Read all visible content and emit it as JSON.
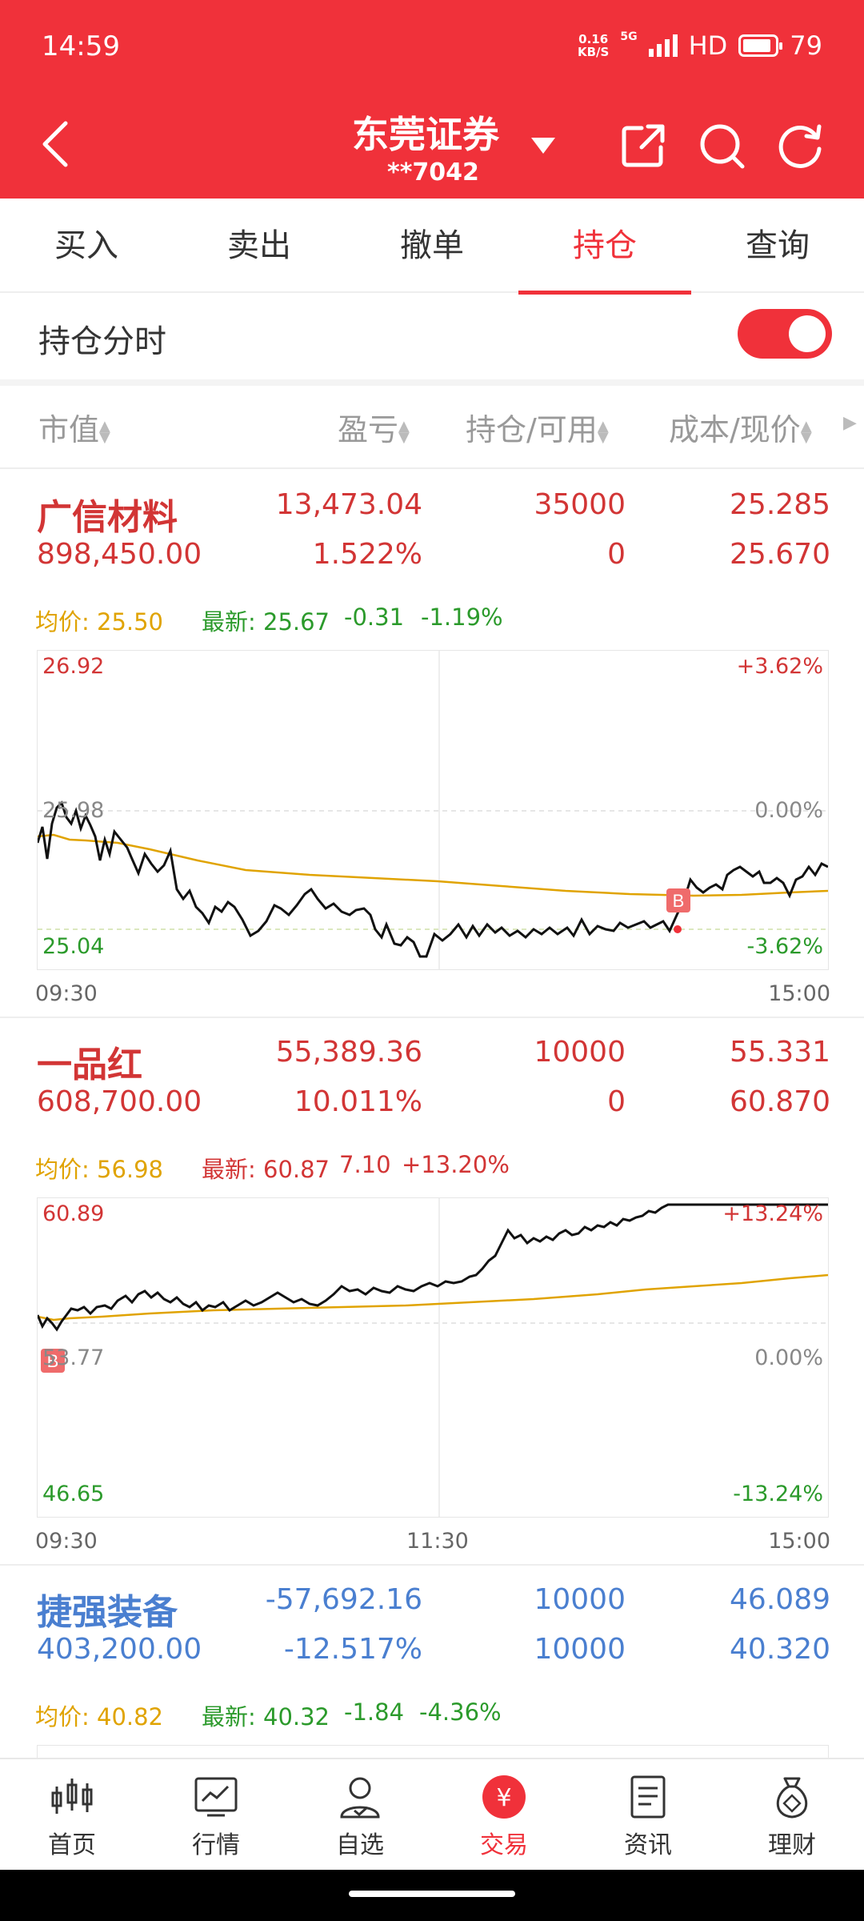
{
  "status_bar": {
    "time": "14:59",
    "net_speed_top": "0.16",
    "net_speed_bottom": "KB/S",
    "signal": "5G",
    "hd": "HD",
    "battery": "79"
  },
  "header": {
    "title": "东莞证券",
    "account": "**7042"
  },
  "tabs": [
    {
      "label": "买入"
    },
    {
      "label": "卖出"
    },
    {
      "label": "撤单"
    },
    {
      "label": "持仓",
      "active": true
    },
    {
      "label": "查询"
    }
  ],
  "toggle": {
    "label": "持仓分时",
    "on": true
  },
  "columns": {
    "market_value": "市值",
    "profit": "盈亏",
    "position": "持仓/可用",
    "cost": "成本/现价"
  },
  "holdings": [
    {
      "name": "广信材料",
      "profit": "13,473.04",
      "position": "35000",
      "cost": "25.285",
      "market_value": "898,450.00",
      "profit_pct": "1.522%",
      "available": "0",
      "price": "25.670",
      "avg_label": "均价: 25.50",
      "latest_label": "最新: 25.67",
      "change": "-0.31",
      "change_pct": "-1.19%",
      "chart": {
        "high": "26.92",
        "mid": "25.98",
        "low": "25.04",
        "pct_high": "+3.62%",
        "pct_mid": "0.00%",
        "pct_low": "-3.62%",
        "t_start": "09:30",
        "t_end": "15:00",
        "marker": "B"
      }
    },
    {
      "name": "一品红",
      "profit": "55,389.36",
      "position": "10000",
      "cost": "55.331",
      "market_value": "608,700.00",
      "profit_pct": "10.011%",
      "available": "0",
      "price": "60.870",
      "avg_label": "均价: 56.98",
      "latest_label": "最新: 60.87",
      "change": "7.10",
      "change_pct": "+13.20%",
      "chart": {
        "high": "60.89",
        "mid": "53.77",
        "low": "46.65",
        "pct_high": "+13.24%",
        "pct_mid": "0.00%",
        "pct_low": "-13.24%",
        "t_start": "09:30",
        "t_mid": "11:30",
        "t_end": "15:00",
        "marker": "B"
      }
    },
    {
      "name": "捷强装备",
      "profit": "-57,692.16",
      "position": "10000",
      "cost": "46.089",
      "market_value": "403,200.00",
      "profit_pct": "-12.517%",
      "available": "10000",
      "price": "40.320",
      "avg_label": "均价: 40.82",
      "latest_label": "最新: 40.32",
      "change": "-1.84",
      "change_pct": "-4.36%"
    }
  ],
  "bottom_nav": [
    {
      "label": "首页"
    },
    {
      "label": "行情"
    },
    {
      "label": "自选"
    },
    {
      "label": "交易",
      "active": true
    },
    {
      "label": "资讯"
    },
    {
      "label": "理财"
    }
  ],
  "colors": {
    "brand_red": "#f0313a",
    "up": "#d23535",
    "down": "#2b9a2b",
    "loss_blue": "#4a7fd0",
    "avg_line": "#e0a300"
  }
}
